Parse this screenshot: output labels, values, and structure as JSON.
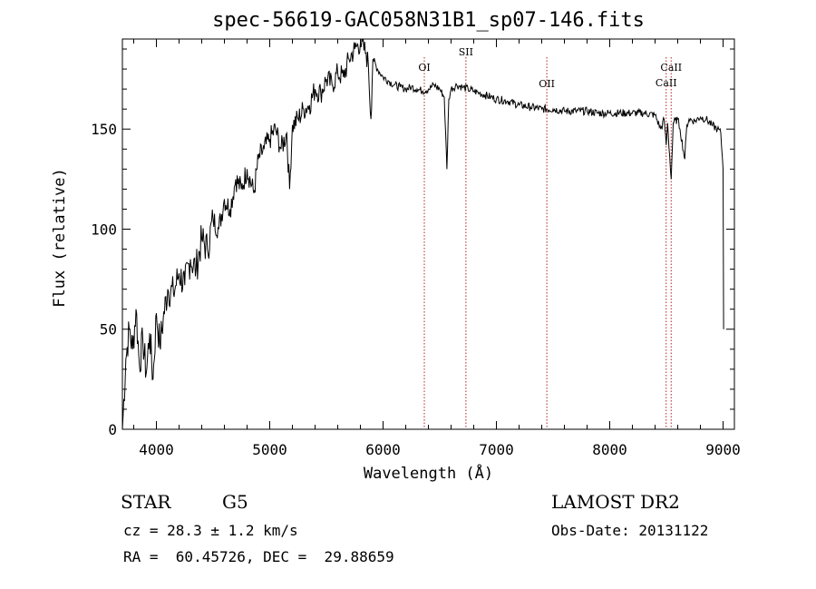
{
  "header": {
    "title": "spec-56619-GAC058N31B1_sp07-146.fits"
  },
  "info": {
    "object_class": "STAR",
    "subclass": "G5",
    "redshift_line": "cz = 28.3 ± 1.2 km/s",
    "coords_line": "RA =  60.45726, DEC =  29.88659",
    "survey": "LAMOST DR2",
    "obs_date_line": "Obs-Date: 20131122"
  },
  "chart_data": {
    "type": "line",
    "title": "spec-56619-GAC058N31B1_sp07-146.fits",
    "xlabel": "Wavelength (Å)",
    "ylabel": "Flux (relative)",
    "xlim": [
      3700,
      9100
    ],
    "ylim": [
      0,
      195
    ],
    "xticks": [
      4000,
      5000,
      6000,
      7000,
      8000,
      9000
    ],
    "yticks": [
      0,
      50,
      100,
      150
    ],
    "grid": false,
    "line_color": "#000000",
    "marker_color": "#b22222",
    "spectral_lines": [
      {
        "label": "OI",
        "wavelength": 6364
      },
      {
        "label": "SII",
        "wavelength": 6731
      },
      {
        "label": "OII",
        "wavelength": 7445
      },
      {
        "label": "CaII",
        "wavelength": 8498
      },
      {
        "label": "CaII",
        "wavelength": 8542
      }
    ],
    "series": [
      {
        "x": [
          3700,
          3730,
          3760,
          3790,
          3820,
          3850,
          3880,
          3910,
          3940,
          3970,
          4000,
          4030,
          4060,
          4100,
          4150,
          4200,
          4250,
          4300,
          4350,
          4400,
          4450,
          4500,
          4550,
          4600,
          4650,
          4700,
          4750,
          4800,
          4860,
          4900,
          4950,
          5000,
          5050,
          5100,
          5150,
          5175,
          5200,
          5250,
          5300,
          5350,
          5400,
          5450,
          5500,
          5550,
          5600,
          5650,
          5700,
          5750,
          5800,
          5850,
          5870,
          5893,
          5910,
          5950,
          6000,
          6050,
          6100,
          6150,
          6200,
          6250,
          6300,
          6350,
          6400,
          6450,
          6500,
          6540,
          6563,
          6580,
          6600,
          6650,
          6700,
          6750,
          6800,
          6850,
          6900,
          6950,
          7000,
          7100,
          7200,
          7300,
          7400,
          7500,
          7600,
          7700,
          7800,
          7900,
          8000,
          8100,
          8200,
          8300,
          8400,
          8450,
          8480,
          8498,
          8510,
          8542,
          8560,
          8600,
          8620,
          8662,
          8680,
          8700,
          8750,
          8800,
          8850,
          8900,
          8950,
          8980,
          9000,
          9005
        ],
        "y": [
          0,
          35,
          50,
          40,
          60,
          32,
          45,
          28,
          48,
          25,
          58,
          42,
          55,
          70,
          68,
          78,
          72,
          85,
          80,
          95,
          90,
          105,
          100,
          115,
          110,
          125,
          120,
          130,
          118,
          135,
          140,
          145,
          150,
          140,
          148,
          120,
          152,
          155,
          160,
          162,
          170,
          168,
          175,
          172,
          178,
          176,
          185,
          190,
          193,
          188,
          182,
          155,
          185,
          180,
          176,
          174,
          172,
          171,
          170,
          171,
          170,
          169,
          170,
          172,
          170,
          166,
          130,
          165,
          170,
          172,
          171,
          170,
          169,
          168,
          167,
          166,
          165,
          164,
          162,
          161,
          160,
          160,
          159,
          159,
          159,
          158,
          158,
          158,
          158,
          158,
          157,
          150,
          155,
          142,
          153,
          125,
          153,
          155,
          150,
          135,
          152,
          155,
          154,
          156,
          155,
          152,
          150,
          148,
          130,
          50
        ]
      }
    ]
  }
}
